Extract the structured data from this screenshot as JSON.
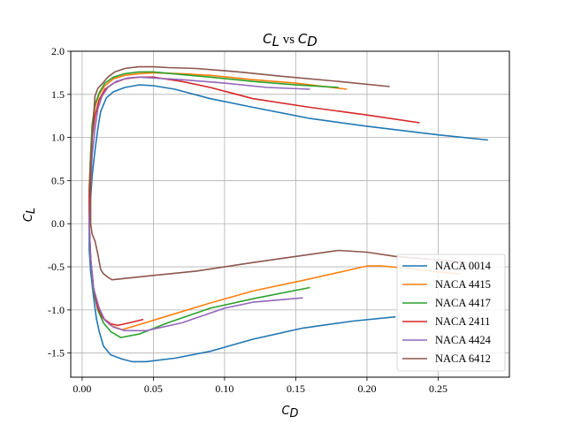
{
  "chart_data": {
    "type": "line",
    "title": {
      "base1": "C",
      "sub1": "L",
      "mid": " vs ",
      "base2": "C",
      "sub2": "D"
    },
    "xlabel": {
      "base": "C",
      "sub": "D"
    },
    "ylabel": {
      "base": "C",
      "sub": "L"
    },
    "xlim": [
      -0.008,
      0.3
    ],
    "ylim": [
      -1.78,
      2.0
    ],
    "xticks": [
      "0.00",
      "0.05",
      "0.10",
      "0.15",
      "0.20",
      "0.25"
    ],
    "yticks": [
      "-1.5",
      "-1.0",
      "-0.5",
      "0.0",
      "0.5",
      "1.0",
      "1.5",
      "2.0"
    ],
    "grid": true,
    "legend_position": "lower-right",
    "series": [
      {
        "name": "NACA 0014",
        "color": "#1f77b4",
        "points": [
          [
            0.285,
            0.97
          ],
          [
            0.25,
            1.03
          ],
          [
            0.2,
            1.13
          ],
          [
            0.16,
            1.22
          ],
          [
            0.12,
            1.35
          ],
          [
            0.09,
            1.45
          ],
          [
            0.065,
            1.56
          ],
          [
            0.05,
            1.6
          ],
          [
            0.04,
            1.61
          ],
          [
            0.03,
            1.58
          ],
          [
            0.022,
            1.53
          ],
          [
            0.017,
            1.46
          ],
          [
            0.013,
            1.3
          ],
          [
            0.011,
            1.1
          ],
          [
            0.009,
            0.85
          ],
          [
            0.007,
            0.55
          ],
          [
            0.006,
            0.3
          ],
          [
            0.005,
            0.0
          ],
          [
            0.005,
            -0.3
          ],
          [
            0.006,
            -0.55
          ],
          [
            0.008,
            -0.85
          ],
          [
            0.01,
            -1.1
          ],
          [
            0.012,
            -1.25
          ],
          [
            0.015,
            -1.42
          ],
          [
            0.02,
            -1.52
          ],
          [
            0.028,
            -1.57
          ],
          [
            0.035,
            -1.6
          ],
          [
            0.045,
            -1.6
          ],
          [
            0.065,
            -1.56
          ],
          [
            0.09,
            -1.48
          ],
          [
            0.12,
            -1.34
          ],
          [
            0.155,
            -1.21
          ],
          [
            0.19,
            -1.13
          ],
          [
            0.22,
            -1.08
          ]
        ]
      },
      {
        "name": "NACA 4415",
        "color": "#ff7f0e",
        "points": [
          [
            0.186,
            1.56
          ],
          [
            0.15,
            1.63
          ],
          [
            0.12,
            1.67
          ],
          [
            0.09,
            1.72
          ],
          [
            0.07,
            1.74
          ],
          [
            0.05,
            1.75
          ],
          [
            0.04,
            1.74
          ],
          [
            0.03,
            1.72
          ],
          [
            0.022,
            1.68
          ],
          [
            0.016,
            1.6
          ],
          [
            0.012,
            1.5
          ],
          [
            0.009,
            1.35
          ],
          [
            0.007,
            1.1
          ],
          [
            0.006,
            0.8
          ],
          [
            0.005,
            0.4
          ],
          [
            0.005,
            0.0
          ],
          [
            0.006,
            -0.4
          ],
          [
            0.008,
            -0.75
          ],
          [
            0.011,
            -0.95
          ],
          [
            0.014,
            -1.08
          ],
          [
            0.02,
            -1.18
          ],
          [
            0.028,
            -1.23
          ],
          [
            0.04,
            -1.17
          ],
          [
            0.06,
            -1.07
          ],
          [
            0.09,
            -0.92
          ],
          [
            0.12,
            -0.78
          ],
          [
            0.16,
            -0.64
          ],
          [
            0.2,
            -0.49
          ],
          [
            0.21,
            -0.49
          ],
          [
            0.23,
            -0.52
          ],
          [
            0.25,
            -0.56
          ],
          [
            0.265,
            -0.58
          ]
        ]
      },
      {
        "name": "NACA 4417",
        "color": "#2ca02c",
        "points": [
          [
            0.18,
            1.58
          ],
          [
            0.15,
            1.61
          ],
          [
            0.12,
            1.65
          ],
          [
            0.09,
            1.7
          ],
          [
            0.07,
            1.73
          ],
          [
            0.05,
            1.76
          ],
          [
            0.04,
            1.76
          ],
          [
            0.03,
            1.74
          ],
          [
            0.022,
            1.7
          ],
          [
            0.016,
            1.63
          ],
          [
            0.012,
            1.52
          ],
          [
            0.009,
            1.38
          ],
          [
            0.007,
            1.15
          ],
          [
            0.006,
            0.8
          ],
          [
            0.005,
            0.4
          ],
          [
            0.005,
            0.0
          ],
          [
            0.006,
            -0.4
          ],
          [
            0.008,
            -0.78
          ],
          [
            0.011,
            -1.0
          ],
          [
            0.015,
            -1.15
          ],
          [
            0.02,
            -1.25
          ],
          [
            0.027,
            -1.32
          ],
          [
            0.04,
            -1.28
          ],
          [
            0.06,
            -1.15
          ],
          [
            0.09,
            -0.98
          ],
          [
            0.12,
            -0.87
          ],
          [
            0.16,
            -0.74
          ]
        ]
      },
      {
        "name": "NACA 2411",
        "color": "#d62728",
        "points": [
          [
            0.237,
            1.17
          ],
          [
            0.2,
            1.26
          ],
          [
            0.16,
            1.35
          ],
          [
            0.12,
            1.45
          ],
          [
            0.09,
            1.58
          ],
          [
            0.07,
            1.65
          ],
          [
            0.05,
            1.7
          ],
          [
            0.04,
            1.7
          ],
          [
            0.03,
            1.68
          ],
          [
            0.022,
            1.63
          ],
          [
            0.016,
            1.56
          ],
          [
            0.012,
            1.44
          ],
          [
            0.009,
            1.25
          ],
          [
            0.007,
            1.0
          ],
          [
            0.006,
            0.7
          ],
          [
            0.005,
            0.3
          ],
          [
            0.005,
            0.0
          ],
          [
            0.006,
            -0.4
          ],
          [
            0.008,
            -0.75
          ],
          [
            0.011,
            -0.98
          ],
          [
            0.015,
            -1.1
          ],
          [
            0.02,
            -1.16
          ],
          [
            0.025,
            -1.18
          ],
          [
            0.033,
            -1.15
          ],
          [
            0.043,
            -1.11
          ]
        ]
      },
      {
        "name": "NACA 4424",
        "color": "#9467bd",
        "points": [
          [
            0.16,
            1.56
          ],
          [
            0.13,
            1.58
          ],
          [
            0.1,
            1.63
          ],
          [
            0.07,
            1.67
          ],
          [
            0.05,
            1.69
          ],
          [
            0.04,
            1.7
          ],
          [
            0.032,
            1.69
          ],
          [
            0.024,
            1.65
          ],
          [
            0.018,
            1.58
          ],
          [
            0.014,
            1.48
          ],
          [
            0.011,
            1.33
          ],
          [
            0.009,
            1.1
          ],
          [
            0.007,
            0.8
          ],
          [
            0.006,
            0.4
          ],
          [
            0.005,
            0.0
          ],
          [
            0.006,
            -0.4
          ],
          [
            0.008,
            -0.75
          ],
          [
            0.012,
            -0.98
          ],
          [
            0.016,
            -1.12
          ],
          [
            0.022,
            -1.2
          ],
          [
            0.03,
            -1.24
          ],
          [
            0.045,
            -1.24
          ],
          [
            0.07,
            -1.15
          ],
          [
            0.1,
            -0.98
          ],
          [
            0.12,
            -0.91
          ],
          [
            0.155,
            -0.86
          ]
        ]
      },
      {
        "name": "NACA 6412",
        "color": "#8c564b",
        "points": [
          [
            0.216,
            1.59
          ],
          [
            0.18,
            1.65
          ],
          [
            0.14,
            1.71
          ],
          [
            0.11,
            1.76
          ],
          [
            0.08,
            1.8
          ],
          [
            0.06,
            1.81
          ],
          [
            0.05,
            1.82
          ],
          [
            0.04,
            1.82
          ],
          [
            0.035,
            1.81
          ],
          [
            0.03,
            1.8
          ],
          [
            0.023,
            1.76
          ],
          [
            0.018,
            1.7
          ],
          [
            0.014,
            1.62
          ],
          [
            0.011,
            1.57
          ],
          [
            0.009,
            1.48
          ],
          [
            0.008,
            1.25
          ],
          [
            0.007,
            1.0
          ],
          [
            0.006,
            0.65
          ],
          [
            0.006,
            0.3
          ],
          [
            0.006,
            0.0
          ],
          [
            0.007,
            -0.12
          ],
          [
            0.009,
            -0.2
          ],
          [
            0.011,
            -0.35
          ],
          [
            0.013,
            -0.53
          ],
          [
            0.015,
            -0.58
          ],
          [
            0.018,
            -0.62
          ],
          [
            0.021,
            -0.65
          ],
          [
            0.05,
            -0.6
          ],
          [
            0.08,
            -0.55
          ],
          [
            0.12,
            -0.45
          ],
          [
            0.15,
            -0.38
          ],
          [
            0.18,
            -0.31
          ],
          [
            0.2,
            -0.33
          ],
          [
            0.22,
            -0.38
          ],
          [
            0.25,
            -0.42
          ],
          [
            0.27,
            -0.45
          ]
        ]
      }
    ]
  }
}
